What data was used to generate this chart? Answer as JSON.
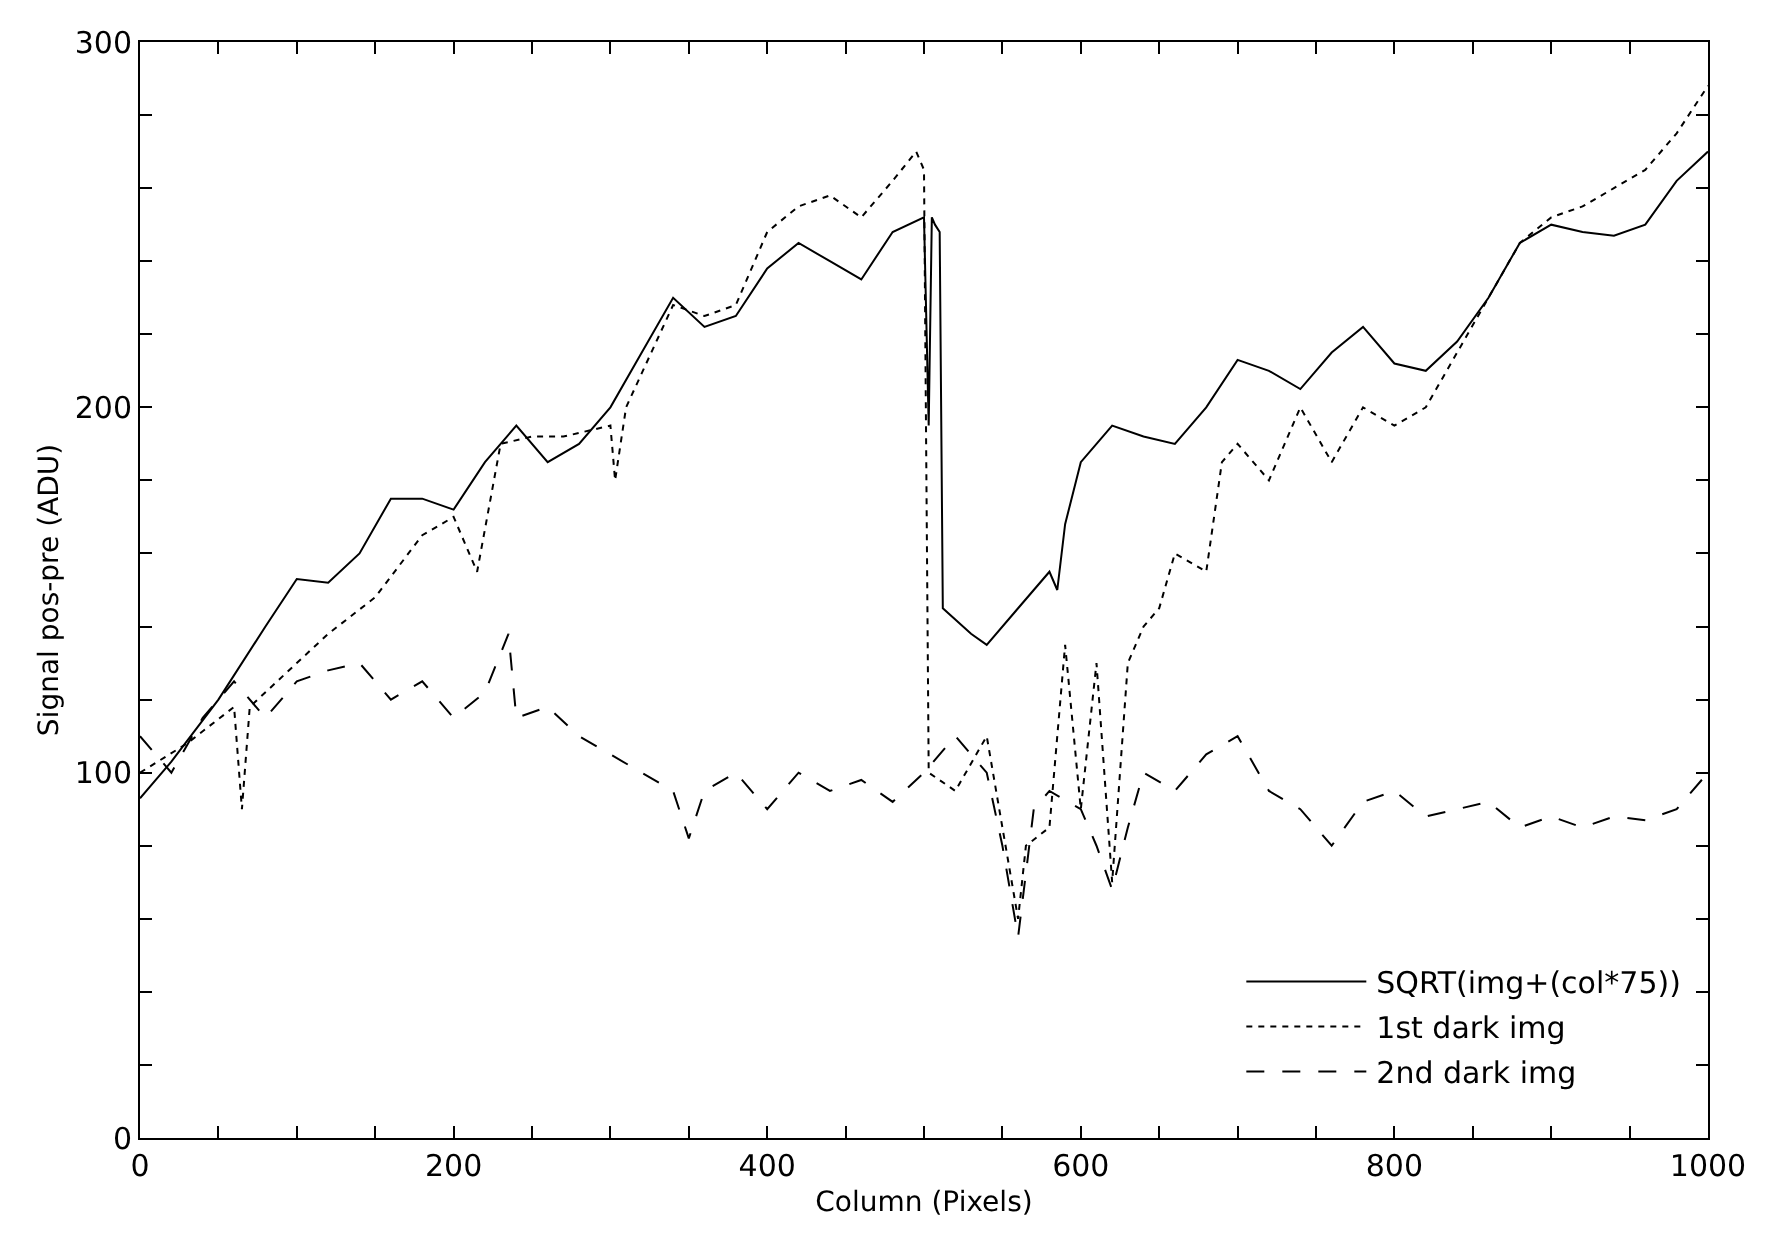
{
  "chart_data": {
    "type": "line",
    "xlabel": "Column (Pixels)",
    "ylabel": "Signal pos-pre (ADU)",
    "xlim": [
      0,
      1000
    ],
    "ylim": [
      0,
      300
    ],
    "xticks": [
      0,
      {
        "value": 50,
        "label": null
      },
      200,
      {
        "value": 100,
        "label": null
      },
      {
        "value": 150,
        "label": null
      },
      {
        "value": 250,
        "label": null
      },
      {
        "value": 300,
        "label": null
      },
      {
        "value": 350,
        "label": null
      },
      400,
      {
        "value": 450,
        "label": null
      },
      {
        "value": 500,
        "label": null
      },
      {
        "value": 550,
        "label": null
      },
      600,
      {
        "value": 650,
        "label": null
      },
      {
        "value": 700,
        "label": null
      },
      {
        "value": 750,
        "label": null
      },
      800,
      {
        "value": 850,
        "label": null
      },
      {
        "value": 900,
        "label": null
      },
      {
        "value": 950,
        "label": null
      },
      1000
    ],
    "yticks": [
      0,
      {
        "value": 20,
        "label": null
      },
      {
        "value": 40,
        "label": null
      },
      {
        "value": 60,
        "label": null
      },
      {
        "value": 80,
        "label": null
      },
      100,
      {
        "value": 120,
        "label": null
      },
      {
        "value": 140,
        "label": null
      },
      {
        "value": 160,
        "label": null
      },
      {
        "value": 180,
        "label": null
      },
      200,
      {
        "value": 220,
        "label": null
      },
      {
        "value": 240,
        "label": null
      },
      {
        "value": 260,
        "label": null
      },
      {
        "value": 280,
        "label": null
      },
      300
    ],
    "legend": "bottom right",
    "marker": "none",
    "series": [
      {
        "name": "SQRT(img+(col*75))",
        "color": "#000000",
        "line_style": "solid",
        "x": [
          0,
          20,
          50,
          80,
          100,
          120,
          140,
          160,
          180,
          200,
          220,
          240,
          260,
          280,
          300,
          320,
          340,
          360,
          380,
          400,
          420,
          440,
          460,
          480,
          500,
          503,
          505,
          507,
          510,
          512,
          530,
          540,
          560,
          580,
          585,
          590,
          600,
          620,
          640,
          660,
          680,
          700,
          720,
          740,
          760,
          780,
          800,
          820,
          840,
          860,
          880,
          900,
          920,
          940,
          960,
          980,
          1000
        ],
        "values": [
          93,
          103,
          120,
          140,
          153,
          152,
          160,
          175,
          175,
          172,
          185,
          195,
          185,
          190,
          200,
          215,
          230,
          222,
          225,
          238,
          245,
          240,
          235,
          248,
          252,
          195,
          252,
          250,
          248,
          145,
          138,
          135,
          145,
          155,
          150,
          168,
          185,
          195,
          192,
          190,
          200,
          213,
          210,
          205,
          215,
          222,
          212,
          210,
          218,
          230,
          245,
          250,
          248,
          247,
          250,
          262,
          270
        ]
      },
      {
        "name": "1st dark img",
        "color": "#000000",
        "line_style": "dotted",
        "x": [
          0,
          30,
          60,
          65,
          70,
          100,
          120,
          150,
          180,
          200,
          215,
          230,
          250,
          270,
          300,
          303,
          310,
          340,
          360,
          380,
          400,
          420,
          440,
          460,
          480,
          495,
          500,
          503,
          520,
          540,
          560,
          565,
          580,
          590,
          600,
          610,
          620,
          630,
          640,
          650,
          660,
          680,
          690,
          700,
          720,
          740,
          760,
          780,
          800,
          820,
          840,
          860,
          880,
          900,
          920,
          940,
          960,
          980,
          1000
        ],
        "values": [
          100,
          108,
          118,
          90,
          118,
          130,
          138,
          148,
          165,
          170,
          155,
          190,
          192,
          192,
          195,
          180,
          200,
          228,
          225,
          228,
          248,
          255,
          258,
          252,
          262,
          270,
          265,
          100,
          95,
          110,
          60,
          80,
          85,
          135,
          90,
          130,
          70,
          130,
          140,
          145,
          160,
          155,
          185,
          190,
          180,
          200,
          185,
          200,
          195,
          200,
          215,
          230,
          245,
          252,
          255,
          260,
          265,
          275,
          288
        ]
      },
      {
        "name": "2nd dark img",
        "color": "#000000",
        "line_style": "dashed",
        "x": [
          0,
          20,
          40,
          60,
          80,
          100,
          120,
          140,
          160,
          180,
          200,
          220,
          235,
          240,
          260,
          280,
          300,
          320,
          340,
          350,
          360,
          380,
          400,
          420,
          440,
          460,
          480,
          500,
          520,
          540,
          550,
          560,
          570,
          580,
          600,
          610,
          620,
          630,
          640,
          660,
          680,
          700,
          720,
          740,
          760,
          780,
          800,
          820,
          840,
          860,
          880,
          900,
          920,
          940,
          960,
          980,
          1000
        ],
        "values": [
          110,
          100,
          115,
          125,
          115,
          125,
          128,
          130,
          120,
          125,
          115,
          122,
          138,
          115,
          118,
          110,
          105,
          100,
          95,
          82,
          95,
          100,
          90,
          100,
          95,
          98,
          92,
          100,
          110,
          100,
          80,
          55,
          90,
          95,
          90,
          80,
          68,
          85,
          100,
          95,
          105,
          110,
          95,
          90,
          80,
          92,
          95,
          88,
          90,
          92,
          85,
          88,
          85,
          88,
          87,
          90,
          100
        ]
      }
    ]
  }
}
